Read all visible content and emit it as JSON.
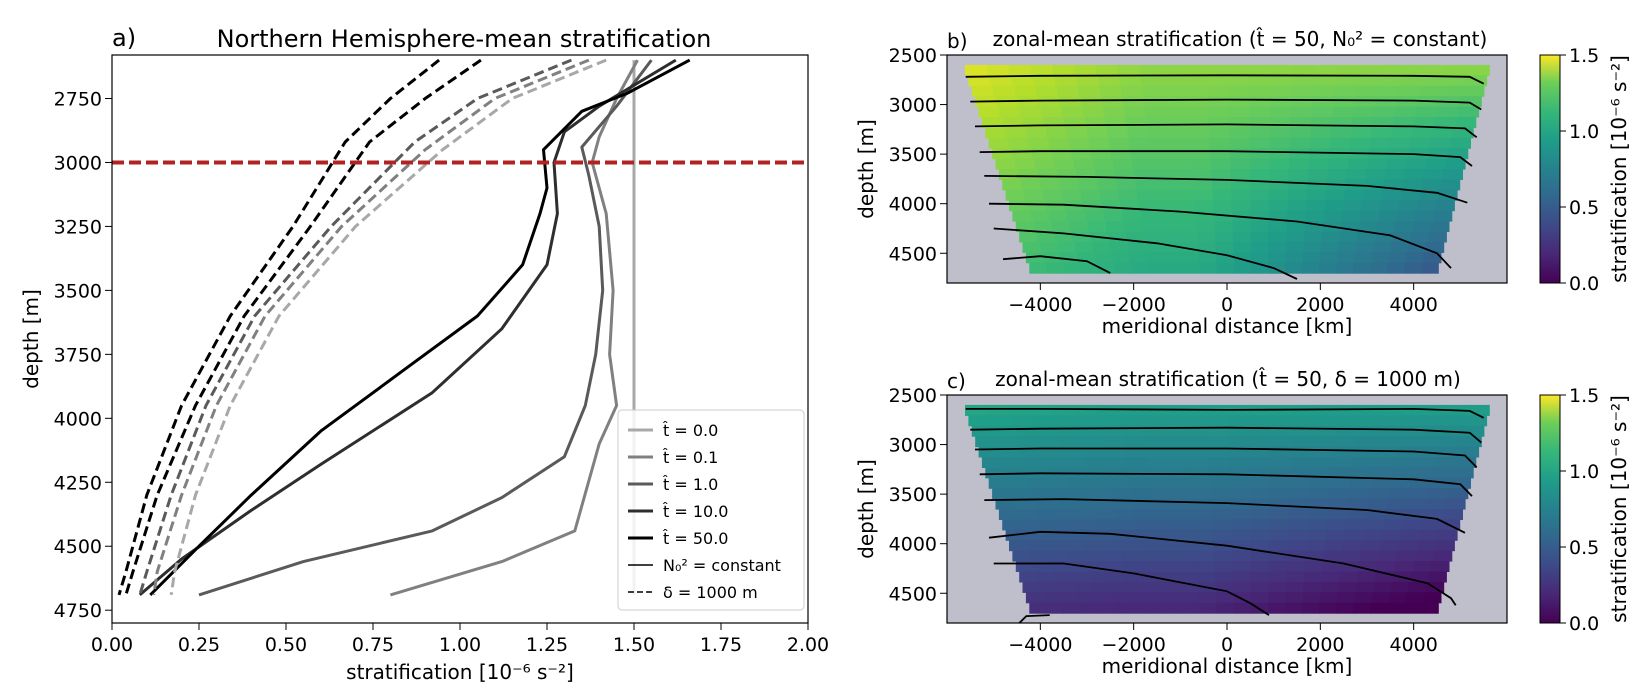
{
  "chart_data": [
    {
      "panel": "a",
      "type": "line",
      "panel_label": "a)",
      "title": "Northern Hemisphere-mean stratification",
      "xlabel": "stratification [10⁻⁶ s⁻²]",
      "ylabel": "depth [m]",
      "xlim": [
        0,
        2
      ],
      "ylim": [
        4800,
        2580
      ],
      "y_inverted": true,
      "xticks": [
        0,
        0.25,
        0.5,
        0.75,
        1.0,
        1.25,
        1.5,
        1.75,
        2.0
      ],
      "xtick_labels": [
        "0.00",
        "0.25",
        "0.50",
        "0.75",
        "1.00",
        "1.25",
        "1.50",
        "1.75",
        "2.00"
      ],
      "yticks": [
        2750,
        3000,
        3250,
        3500,
        3750,
        4000,
        4250,
        4500,
        4750
      ],
      "ytick_labels": [
        "2750",
        "3000",
        "3250",
        "3500",
        "3750",
        "4000",
        "4250",
        "4500",
        "4750"
      ],
      "reference_line": {
        "y": 3000,
        "style": "dashed",
        "color": "#b22222"
      },
      "legend_position": "lower right",
      "legend": [
        {
          "label": "t̂ = 0.0",
          "color": "#a8a8a8",
          "style": "solid",
          "width": 3
        },
        {
          "label": "t̂ = 0.1",
          "color": "#808080",
          "style": "solid",
          "width": 3
        },
        {
          "label": "t̂ = 1.0",
          "color": "#5a5a5a",
          "style": "solid",
          "width": 3
        },
        {
          "label": "t̂ = 10.0",
          "color": "#2e2e2e",
          "style": "solid",
          "width": 3
        },
        {
          "label": "t̂ = 50.0",
          "color": "#000000",
          "style": "solid",
          "width": 3
        },
        {
          "label": "N₀² = constant",
          "color": "#000000",
          "style": "solid",
          "width": 1.5
        },
        {
          "label": "δ = 1000 m",
          "color": "#000000",
          "style": "dashed",
          "width": 1.5
        }
      ],
      "series": [
        {
          "color": "#a8a8a8",
          "dash": false,
          "points": [
            [
              1.5,
              2600
            ],
            [
              1.5,
              3000
            ],
            [
              1.5,
              3500
            ],
            [
              1.5,
              4000
            ],
            [
              1.5,
              4500
            ],
            [
              1.5,
              4690
            ]
          ]
        },
        {
          "color": "#808080",
          "dash": false,
          "points": [
            [
              1.51,
              2600
            ],
            [
              1.45,
              2750
            ],
            [
              1.4,
              2900
            ],
            [
              1.38,
              3000
            ],
            [
              1.42,
              3200
            ],
            [
              1.44,
              3500
            ],
            [
              1.43,
              3750
            ],
            [
              1.45,
              3950
            ],
            [
              1.4,
              4100
            ],
            [
              1.33,
              4440
            ],
            [
              1.12,
              4560
            ],
            [
              0.8,
              4690
            ]
          ]
        },
        {
          "color": "#5a5a5a",
          "dash": false,
          "points": [
            [
              1.55,
              2600
            ],
            [
              1.45,
              2780
            ],
            [
              1.35,
              2940
            ],
            [
              1.37,
              3050
            ],
            [
              1.4,
              3250
            ],
            [
              1.41,
              3500
            ],
            [
              1.39,
              3750
            ],
            [
              1.36,
              3950
            ],
            [
              1.3,
              4150
            ],
            [
              1.12,
              4310
            ],
            [
              0.92,
              4440
            ],
            [
              0.55,
              4560
            ],
            [
              0.25,
              4690
            ]
          ]
        },
        {
          "color": "#2e2e2e",
          "dash": false,
          "points": [
            [
              1.62,
              2600
            ],
            [
              1.4,
              2780
            ],
            [
              1.3,
              2880
            ],
            [
              1.27,
              3000
            ],
            [
              1.28,
              3200
            ],
            [
              1.25,
              3400
            ],
            [
              1.12,
              3650
            ],
            [
              0.92,
              3900
            ],
            [
              0.6,
              4180
            ],
            [
              0.4,
              4360
            ],
            [
              0.2,
              4550
            ],
            [
              0.08,
              4690
            ]
          ]
        },
        {
          "color": "#000000",
          "dash": false,
          "points": [
            [
              1.66,
              2600
            ],
            [
              1.48,
              2730
            ],
            [
              1.35,
              2800
            ],
            [
              1.24,
              2950
            ],
            [
              1.25,
              3100
            ],
            [
              1.23,
              3200
            ],
            [
              1.18,
              3400
            ],
            [
              1.05,
              3600
            ],
            [
              0.85,
              3800
            ],
            [
              0.6,
              4050
            ],
            [
              0.4,
              4300
            ],
            [
              0.25,
              4500
            ],
            [
              0.11,
              4690
            ]
          ]
        },
        {
          "color": "#a8a8a8",
          "dash": true,
          "points": [
            [
              1.42,
              2600
            ],
            [
              1.15,
              2750
            ],
            [
              0.95,
              2950
            ],
            [
              0.7,
              3250
            ],
            [
              0.48,
              3600
            ],
            [
              0.34,
              3950
            ],
            [
              0.24,
              4300
            ],
            [
              0.18,
              4600
            ],
            [
              0.17,
              4690
            ]
          ]
        },
        {
          "color": "#808080",
          "dash": true,
          "points": [
            [
              1.37,
              2600
            ],
            [
              1.1,
              2750
            ],
            [
              0.9,
              2950
            ],
            [
              0.66,
              3250
            ],
            [
              0.44,
              3600
            ],
            [
              0.3,
              3950
            ],
            [
              0.2,
              4300
            ],
            [
              0.13,
              4600
            ],
            [
              0.12,
              4690
            ]
          ]
        },
        {
          "color": "#5a5a5a",
          "dash": true,
          "points": [
            [
              1.32,
              2600
            ],
            [
              1.05,
              2750
            ],
            [
              0.87,
              2920
            ],
            [
              0.63,
              3250
            ],
            [
              0.41,
              3600
            ],
            [
              0.27,
              3950
            ],
            [
              0.17,
              4300
            ],
            [
              0.1,
              4600
            ],
            [
              0.08,
              4690
            ]
          ]
        },
        {
          "color": "#000000",
          "dash": true,
          "points": [
            [
              1.06,
              2600
            ],
            [
              0.9,
              2750
            ],
            [
              0.74,
              2920
            ],
            [
              0.57,
              3250
            ],
            [
              0.38,
              3600
            ],
            [
              0.24,
              3950
            ],
            [
              0.13,
              4300
            ],
            [
              0.06,
              4600
            ],
            [
              0.04,
              4690
            ]
          ]
        },
        {
          "color": "#000000",
          "dash": true,
          "points": [
            [
              0.94,
              2600
            ],
            [
              0.8,
              2750
            ],
            [
              0.67,
              2920
            ],
            [
              0.52,
              3250
            ],
            [
              0.34,
              3600
            ],
            [
              0.2,
              3950
            ],
            [
              0.1,
              4300
            ],
            [
              0.04,
              4600
            ],
            [
              0.02,
              4690
            ]
          ]
        }
      ]
    },
    {
      "panel": "b",
      "type": "heatmap",
      "panel_label": "b)",
      "title": "zonal-mean stratification (t̂ = 50, N₀² = constant)",
      "xlabel": "meridional distance [km]",
      "ylabel": "depth [m]",
      "xlim": [
        -6000,
        6000
      ],
      "ylim": [
        4800,
        2500
      ],
      "y_inverted": true,
      "xticks": [
        -4000,
        -2000,
        0,
        2000,
        4000
      ],
      "xtick_labels": [
        "−4000",
        "−2000",
        "0",
        "2000",
        "4000"
      ],
      "yticks": [
        2500,
        3000,
        3500,
        4000,
        4500
      ],
      "ytick_labels": [
        "2500",
        "3000",
        "3500",
        "4000",
        "4500"
      ],
      "colorbar": {
        "label": "stratification [10⁻⁶ s⁻²]",
        "range": [
          0,
          1.5
        ],
        "ticks": [
          "0.0",
          "0.5",
          "1.0",
          "1.5"
        ],
        "colormap": "viridis"
      },
      "field": {
        "base": 1.25,
        "depth_decay": 0.35,
        "north_decay": 0.65,
        "south_boost": 0.2
      },
      "contours": [
        [
          [
            -5600,
            2720
          ],
          [
            -4000,
            2710
          ],
          [
            0,
            2705
          ],
          [
            4000,
            2710
          ],
          [
            5200,
            2720
          ],
          [
            5500,
            2790
          ]
        ],
        [
          [
            -5500,
            2970
          ],
          [
            -4000,
            2960
          ],
          [
            0,
            2950
          ],
          [
            4000,
            2960
          ],
          [
            5200,
            2980
          ],
          [
            5450,
            3050
          ]
        ],
        [
          [
            -5400,
            3220
          ],
          [
            -4000,
            3210
          ],
          [
            0,
            3200
          ],
          [
            4000,
            3220
          ],
          [
            5100,
            3240
          ],
          [
            5350,
            3330
          ]
        ],
        [
          [
            -5300,
            3480
          ],
          [
            -4000,
            3470
          ],
          [
            0,
            3470
          ],
          [
            4000,
            3500
          ],
          [
            5000,
            3530
          ],
          [
            5250,
            3620
          ]
        ],
        [
          [
            -5200,
            3720
          ],
          [
            -3000,
            3730
          ],
          [
            0,
            3760
          ],
          [
            3000,
            3820
          ],
          [
            4500,
            3890
          ],
          [
            5150,
            3990
          ]
        ],
        [
          [
            -5100,
            4000
          ],
          [
            -3500,
            4010
          ],
          [
            -1000,
            4080
          ],
          [
            1500,
            4180
          ],
          [
            3500,
            4320
          ],
          [
            4500,
            4500
          ],
          [
            4800,
            4650
          ]
        ],
        [
          [
            -5000,
            4250
          ],
          [
            -3500,
            4300
          ],
          [
            -1500,
            4400
          ],
          [
            0,
            4520
          ],
          [
            1000,
            4650
          ],
          [
            1500,
            4760
          ]
        ],
        [
          [
            -4800,
            4560
          ],
          [
            -4000,
            4530
          ],
          [
            -3000,
            4580
          ],
          [
            -2500,
            4700
          ]
        ]
      ]
    },
    {
      "panel": "c",
      "type": "heatmap",
      "panel_label": "c)",
      "title": "zonal-mean stratification (t̂ = 50, δ = 1000 m)",
      "xlabel": "meridional distance [km]",
      "ylabel": "depth [m]",
      "xlim": [
        -6000,
        6000
      ],
      "ylim": [
        4800,
        2500
      ],
      "y_inverted": true,
      "xticks": [
        -4000,
        -2000,
        0,
        2000,
        4000
      ],
      "xtick_labels": [
        "−4000",
        "−2000",
        "0",
        "2000",
        "4000"
      ],
      "yticks": [
        2500,
        3000,
        3500,
        4000,
        4500
      ],
      "ytick_labels": [
        "2500",
        "3000",
        "3500",
        "4000",
        "4500"
      ],
      "colorbar": {
        "label": "stratification [10⁻⁶ s⁻²]",
        "range": [
          0,
          1.5
        ],
        "ticks": [
          "0.0",
          "0.5",
          "1.0",
          "1.5"
        ],
        "colormap": "viridis"
      },
      "field": {
        "base": 0.85,
        "depth_decay": 0.7,
        "north_decay": 0.3,
        "south_boost": 0.05
      },
      "contours": [
        [
          [
            -5600,
            2640
          ],
          [
            -4000,
            2640
          ],
          [
            0,
            2650
          ],
          [
            4000,
            2640
          ],
          [
            5200,
            2660
          ],
          [
            5500,
            2730
          ]
        ],
        [
          [
            -5500,
            2850
          ],
          [
            -4000,
            2840
          ],
          [
            0,
            2830
          ],
          [
            4000,
            2850
          ],
          [
            5200,
            2880
          ],
          [
            5450,
            2980
          ]
        ],
        [
          [
            -5400,
            3050
          ],
          [
            -4000,
            3040
          ],
          [
            0,
            3040
          ],
          [
            4000,
            3070
          ],
          [
            5100,
            3110
          ],
          [
            5350,
            3230
          ]
        ],
        [
          [
            -5300,
            3300
          ],
          [
            -4000,
            3290
          ],
          [
            0,
            3300
          ],
          [
            4000,
            3350
          ],
          [
            5000,
            3400
          ],
          [
            5250,
            3520
          ]
        ],
        [
          [
            -5200,
            3560
          ],
          [
            -3500,
            3550
          ],
          [
            0,
            3590
          ],
          [
            3000,
            3660
          ],
          [
            4500,
            3750
          ],
          [
            5100,
            3890
          ]
        ],
        [
          [
            -5100,
            3940
          ],
          [
            -4000,
            3880
          ],
          [
            -2500,
            3900
          ],
          [
            0,
            4020
          ],
          [
            2500,
            4200
          ],
          [
            4300,
            4400
          ],
          [
            4800,
            4550
          ],
          [
            4900,
            4620
          ]
        ],
        [
          [
            -5000,
            4200
          ],
          [
            -3500,
            4200
          ],
          [
            -2000,
            4300
          ],
          [
            0,
            4480
          ],
          [
            500,
            4600
          ],
          [
            900,
            4720
          ]
        ],
        [
          [
            -4450,
            4800
          ],
          [
            -4300,
            4730
          ],
          [
            -3800,
            4720
          ]
        ]
      ]
    }
  ]
}
